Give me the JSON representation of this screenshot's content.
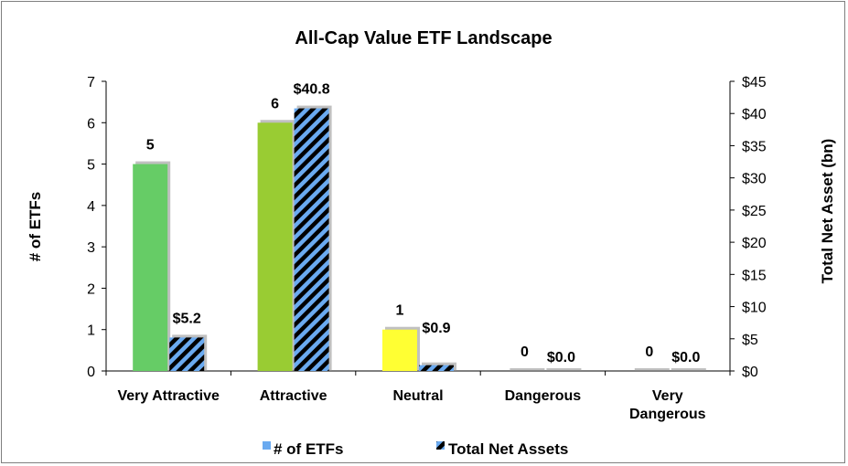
{
  "chart_data": {
    "type": "bar",
    "title": "All-Cap Value ETF Landscape",
    "categories": [
      [
        "Very Attractive"
      ],
      [
        "Attractive"
      ],
      [
        "Neutral"
      ],
      [
        "Dangerous"
      ],
      [
        "Very",
        "Dangerous"
      ]
    ],
    "series": [
      {
        "name": "# of ETFs",
        "axis": "left",
        "values": [
          5,
          6,
          1,
          0,
          0
        ],
        "labels": [
          "5",
          "6",
          "1",
          "0",
          "0"
        ],
        "colors": [
          "#66cc66",
          "#99cc33",
          "#ffff33",
          "#ffffff",
          "#ffffff"
        ]
      },
      {
        "name": "Total Net Assets",
        "axis": "right",
        "values": [
          5.2,
          40.8,
          0.9,
          0.0,
          0.0
        ],
        "labels": [
          "$5.2",
          "$40.8",
          "$0.9",
          "$0.0",
          "$0.0"
        ],
        "pattern": "black-and-blue diagonal stripes"
      }
    ],
    "ylabel_left": "# of ETFs",
    "ylabel_right": "Total Net Asset (bn)",
    "ylim_left": [
      0,
      7
    ],
    "ylim_right": [
      0,
      45
    ],
    "yticks_left": [
      "0",
      "1",
      "2",
      "3",
      "4",
      "5",
      "6",
      "7"
    ],
    "yticks_right": [
      "$0",
      "$5",
      "$10",
      "$15",
      "$20",
      "$25",
      "$30",
      "$35",
      "$40",
      "$45"
    ],
    "grid": false,
    "legend_position": "bottom",
    "colors": {
      "legend_etfs": "#6aaaf0",
      "stripe_blue": "#6aaaf0",
      "stripe_dark": "#000000"
    }
  }
}
